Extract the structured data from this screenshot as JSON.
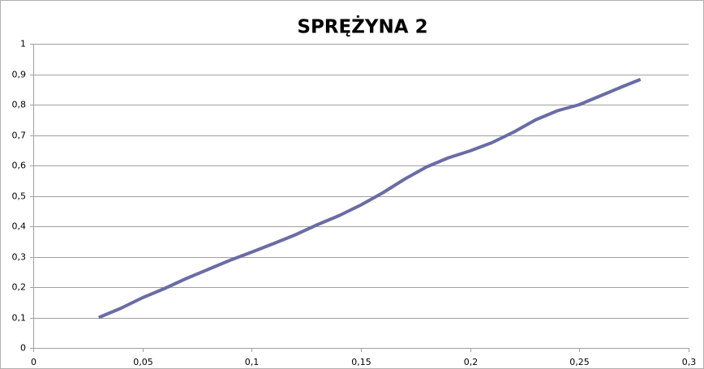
{
  "chart_data": {
    "type": "line",
    "title": "SPRĘŻYNA 2",
    "x": [
      0.03,
      0.04,
      0.05,
      0.06,
      0.07,
      0.08,
      0.09,
      0.1,
      0.11,
      0.12,
      0.13,
      0.14,
      0.15,
      0.16,
      0.17,
      0.18,
      0.19,
      0.2,
      0.21,
      0.22,
      0.23,
      0.24,
      0.25,
      0.26,
      0.27,
      0.278
    ],
    "series": [
      {
        "color": "#6a6ca4",
        "values": [
          0.1,
          0.13,
          0.165,
          0.195,
          0.228,
          0.258,
          0.288,
          0.315,
          0.343,
          0.372,
          0.405,
          0.435,
          0.47,
          0.51,
          0.555,
          0.595,
          0.625,
          0.648,
          0.675,
          0.71,
          0.75,
          0.78,
          0.8,
          0.83,
          0.86,
          0.883
        ]
      }
    ],
    "xlim": [
      0,
      0.3
    ],
    "xticks": [
      0,
      {
        "value": 0.05,
        "label": "0,05"
      },
      {
        "value": 0.1,
        "label": "0,1"
      },
      {
        "value": 0.15,
        "label": "0,15"
      },
      {
        "value": 0.2,
        "label": "0,2"
      },
      {
        "value": 0.25,
        "label": "0,25"
      },
      {
        "value": 0.3,
        "label": "0,3"
      }
    ],
    "ylim": [
      0,
      1
    ],
    "yticks": [
      0,
      {
        "value": 0.1,
        "label": "0,1"
      },
      {
        "value": 0.2,
        "label": "0,2"
      },
      {
        "value": 0.3,
        "label": "0,3"
      },
      {
        "value": 0.4,
        "label": "0,4"
      },
      {
        "value": 0.5,
        "label": "0,5"
      },
      {
        "value": 0.6,
        "label": "0,6"
      },
      {
        "value": 0.7,
        "label": "0,7"
      },
      {
        "value": 0.8,
        "label": "0,8"
      },
      {
        "value": 0.9,
        "label": "0,9"
      },
      1
    ],
    "grid": true
  }
}
